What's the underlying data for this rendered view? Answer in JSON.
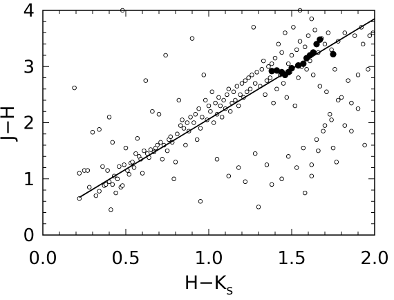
{
  "chart_data": {
    "type": "scatter",
    "xlabel": "H−K",
    "xlabel_subscript": "s",
    "ylabel": "J−H",
    "xlim": [
      0.0,
      2.0
    ],
    "ylim": [
      0.0,
      4.0
    ],
    "x_ticks": [
      "0.0",
      "0.5",
      "1.0",
      "1.5",
      "2.0"
    ],
    "y_ticks": [
      "0",
      "1",
      "2",
      "3",
      "4"
    ],
    "grid": false,
    "legend": "none",
    "series": [
      {
        "marker": "open-circle",
        "points": [
          [
            0.19,
            2.62
          ],
          [
            0.22,
            0.65
          ],
          [
            0.22,
            1.1
          ],
          [
            0.25,
            1.15
          ],
          [
            0.27,
            1.15
          ],
          [
            0.28,
            0.85
          ],
          [
            0.3,
            1.83
          ],
          [
            0.32,
            0.7
          ],
          [
            0.34,
            0.78
          ],
          [
            0.34,
            1.88
          ],
          [
            0.36,
            1.22
          ],
          [
            0.37,
            0.88
          ],
          [
            0.38,
            0.9
          ],
          [
            0.39,
            1.15
          ],
          [
            0.4,
            0.95
          ],
          [
            0.4,
            2.1
          ],
          [
            0.41,
            0.45
          ],
          [
            0.42,
            0.9
          ],
          [
            0.42,
            1.65
          ],
          [
            0.43,
            1.05
          ],
          [
            0.44,
            0.75
          ],
          [
            0.45,
            1.0
          ],
          [
            0.46,
            1.22
          ],
          [
            0.47,
            0.85
          ],
          [
            0.48,
            0.88
          ],
          [
            0.48,
            4.0
          ],
          [
            0.49,
            1.25
          ],
          [
            0.5,
            1.55
          ],
          [
            0.51,
            1.15
          ],
          [
            0.52,
            1.08
          ],
          [
            0.53,
            1.28
          ],
          [
            0.54,
            1.3
          ],
          [
            0.55,
            1.2
          ],
          [
            0.56,
            1.45
          ],
          [
            0.57,
            1.72
          ],
          [
            0.58,
            1.4
          ],
          [
            0.59,
            1.35
          ],
          [
            0.6,
            1.1
          ],
          [
            0.61,
            1.5
          ],
          [
            0.62,
            2.75
          ],
          [
            0.63,
            1.45
          ],
          [
            0.64,
            1.38
          ],
          [
            0.65,
            1.52
          ],
          [
            0.66,
            2.2
          ],
          [
            0.67,
            1.48
          ],
          [
            0.68,
            1.55
          ],
          [
            0.69,
            1.6
          ],
          [
            0.7,
            2.15
          ],
          [
            0.71,
            1.65
          ],
          [
            0.72,
            1.35
          ],
          [
            0.73,
            1.6
          ],
          [
            0.74,
            3.2
          ],
          [
            0.75,
            1.5
          ],
          [
            0.76,
            1.7
          ],
          [
            0.77,
            1.75
          ],
          [
            0.78,
            1.65
          ],
          [
            0.79,
            1.0
          ],
          [
            0.8,
            1.3
          ],
          [
            0.81,
            1.8
          ],
          [
            0.82,
            2.4
          ],
          [
            0.83,
            1.95
          ],
          [
            0.84,
            2.05
          ],
          [
            0.85,
            1.9
          ],
          [
            0.86,
            1.6
          ],
          [
            0.87,
            2.0
          ],
          [
            0.88,
            1.85
          ],
          [
            0.89,
            2.1
          ],
          [
            0.9,
            3.5
          ],
          [
            0.91,
            2.0
          ],
          [
            0.92,
            2.15
          ],
          [
            0.93,
            1.7
          ],
          [
            0.94,
            2.25
          ],
          [
            0.95,
            1.9
          ],
          [
            0.96,
            2.1
          ],
          [
            0.97,
            2.85
          ],
          [
            0.98,
            2.4
          ],
          [
            0.99,
            2.05
          ],
          [
            1.0,
            2.3
          ],
          [
            1.01,
            2.2
          ],
          [
            1.02,
            2.55
          ],
          [
            1.03,
            2.0
          ],
          [
            1.04,
            2.35
          ],
          [
            1.05,
            2.15
          ],
          [
            1.06,
            2.45
          ],
          [
            1.07,
            2.3
          ],
          [
            1.08,
            2.1
          ],
          [
            1.09,
            2.4
          ],
          [
            1.1,
            2.25
          ],
          [
            1.11,
            2.5
          ],
          [
            1.12,
            2.6
          ],
          [
            1.13,
            2.2
          ],
          [
            1.14,
            2.35
          ],
          [
            1.15,
            2.55
          ],
          [
            1.16,
            2.4
          ],
          [
            1.17,
            2.65
          ],
          [
            1.18,
            2.3
          ],
          [
            1.19,
            2.5
          ],
          [
            1.2,
            2.7
          ],
          [
            1.21,
            2.45
          ],
          [
            1.22,
            2.75
          ],
          [
            1.23,
            2.55
          ],
          [
            1.24,
            2.8
          ],
          [
            1.25,
            2.6
          ],
          [
            1.26,
            2.85
          ],
          [
            1.27,
            3.7
          ],
          [
            1.28,
            2.7
          ],
          [
            1.29,
            2.9
          ],
          [
            1.3,
            0.5
          ],
          [
            1.31,
            2.65
          ],
          [
            1.32,
            2.95
          ],
          [
            1.33,
            3.1
          ],
          [
            1.34,
            2.5
          ],
          [
            1.35,
            2.75
          ],
          [
            1.36,
            3.0
          ],
          [
            1.37,
            2.8
          ],
          [
            1.38,
            3.05
          ],
          [
            1.39,
            2.35
          ],
          [
            1.4,
            3.15
          ],
          [
            1.41,
            2.6
          ],
          [
            1.42,
            3.4
          ],
          [
            1.43,
            2.85
          ],
          [
            1.44,
            3.25
          ],
          [
            1.45,
            2.7
          ],
          [
            1.46,
            3.6
          ],
          [
            1.47,
            2.45
          ],
          [
            1.48,
            3.05
          ],
          [
            1.49,
            2.9
          ],
          [
            1.5,
            3.2
          ],
          [
            1.51,
            3.7
          ],
          [
            1.52,
            2.3
          ],
          [
            1.53,
            3.3
          ],
          [
            1.54,
            2.8
          ],
          [
            1.55,
            3.45
          ],
          [
            1.56,
            3.0
          ],
          [
            1.57,
            1.55
          ],
          [
            1.58,
            3.35
          ],
          [
            1.59,
            2.95
          ],
          [
            1.6,
            3.55
          ],
          [
            1.61,
            3.1
          ],
          [
            1.62,
            1.25
          ],
          [
            1.63,
            2.85
          ],
          [
            1.64,
            3.65
          ],
          [
            1.65,
            1.7
          ],
          [
            1.66,
            3.25
          ],
          [
            1.67,
            2.65
          ],
          [
            1.68,
            3.5
          ],
          [
            1.69,
            1.85
          ],
          [
            1.7,
            3.4
          ],
          [
            1.71,
            2.55
          ],
          [
            1.72,
            3.6
          ],
          [
            1.73,
            2.15
          ],
          [
            1.74,
            3.3
          ],
          [
            1.75,
            1.55
          ],
          [
            1.76,
            2.95
          ],
          [
            1.77,
            1.3
          ],
          [
            1.78,
            3.45
          ],
          [
            1.8,
            2.45
          ],
          [
            1.82,
            3.6
          ],
          [
            1.84,
            2.75
          ],
          [
            1.86,
            1.85
          ],
          [
            1.88,
            3.55
          ],
          [
            1.9,
            2.25
          ],
          [
            1.92,
            3.7
          ],
          [
            1.94,
            1.6
          ],
          [
            1.97,
            3.55
          ],
          [
            0.95,
            0.6
          ],
          [
            1.05,
            1.35
          ],
          [
            1.12,
            1.05
          ],
          [
            1.18,
            1.2
          ],
          [
            1.22,
            0.95
          ],
          [
            1.28,
            1.45
          ],
          [
            1.35,
            1.25
          ],
          [
            1.38,
            0.9
          ],
          [
            1.44,
            1.0
          ],
          [
            1.48,
            1.4
          ],
          [
            1.53,
            1.2
          ],
          [
            1.58,
            0.75
          ],
          [
            1.62,
            1.05
          ],
          [
            1.66,
            1.5
          ],
          [
            1.7,
            1.95
          ],
          [
            1.74,
            2.05
          ],
          [
            1.78,
            2.4
          ],
          [
            1.82,
            1.95
          ],
          [
            1.86,
            2.35
          ],
          [
            1.9,
            2.85
          ],
          [
            1.93,
            3.4
          ],
          [
            1.96,
            2.95
          ],
          [
            1.99,
            3.6
          ],
          [
            1.55,
            4.0
          ],
          [
            1.62,
            3.85
          ]
        ]
      },
      {
        "marker": "filled-circle",
        "points": [
          [
            1.38,
            2.92
          ],
          [
            1.41,
            2.93
          ],
          [
            1.44,
            2.9
          ],
          [
            1.46,
            2.85
          ],
          [
            1.48,
            2.9
          ],
          [
            1.5,
            2.97
          ],
          [
            1.54,
            3.02
          ],
          [
            1.57,
            3.05
          ],
          [
            1.59,
            3.15
          ],
          [
            1.61,
            3.2
          ],
          [
            1.63,
            3.25
          ],
          [
            1.65,
            3.4
          ],
          [
            1.67,
            3.48
          ],
          [
            1.75,
            3.22
          ]
        ]
      }
    ],
    "fit_line": {
      "x": [
        0.22,
        2.0
      ],
      "y": [
        0.67,
        3.85
      ]
    }
  }
}
